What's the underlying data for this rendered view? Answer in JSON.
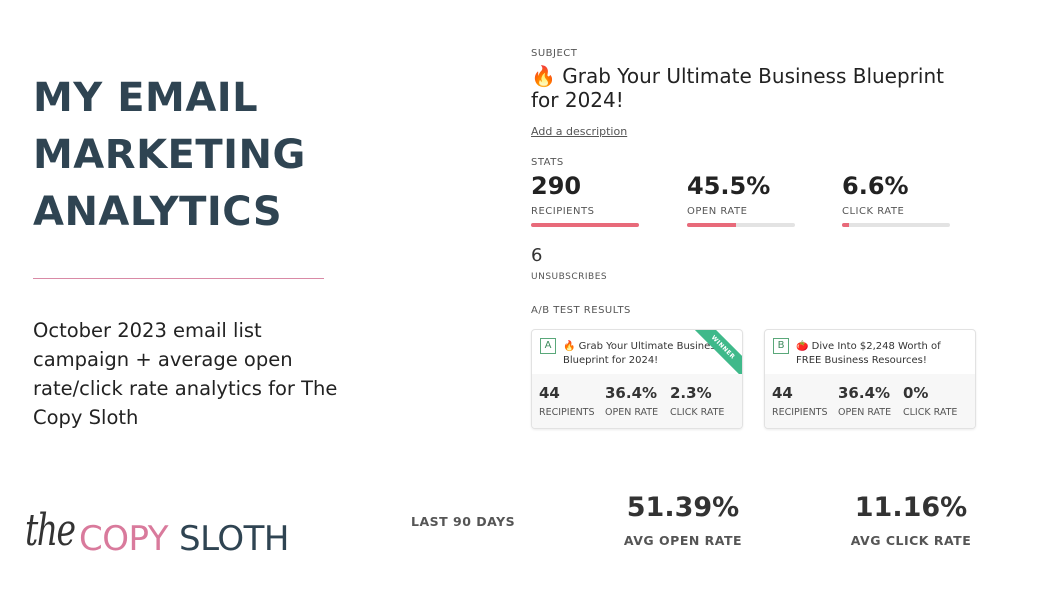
{
  "title": {
    "line1": "MY EMAIL",
    "line2": "MARKETING",
    "line3": "ANALYTICS"
  },
  "description": "October 2023 email list campaign + average open rate/click rate analytics for The Copy Sloth",
  "logo": {
    "script": "the",
    "word1": "COPY",
    "word2": "SLOTH"
  },
  "email": {
    "subject_label": "SUBJECT",
    "subject": "🔥 Grab Your Ultimate Business Blueprint for 2024!",
    "add_description": "Add a description",
    "stats_label": "STATS",
    "stats": [
      {
        "value": "290",
        "label": "RECIPIENTS",
        "progress": 1.0
      },
      {
        "value": "45.5%",
        "label": "OPEN RATE",
        "progress": 0.455
      },
      {
        "value": "6.6%",
        "label": "CLICK RATE",
        "progress": 0.066
      }
    ],
    "unsubscribes": {
      "value": "6",
      "label": "UNSUBSCRIBES"
    },
    "ab_label": "A/B TEST RESULTS",
    "ab_tests": [
      {
        "letter": "A",
        "subject": "🔥 Grab Your Ultimate Business Blueprint for 2024!",
        "ribbon": "WINNER",
        "recipients": "44",
        "recipients_label": "RECIPIENTS",
        "open_rate": "36.4%",
        "open_rate_label": "OPEN RATE",
        "click_rate": "2.3%",
        "click_rate_label": "CLICK RATE"
      },
      {
        "letter": "B",
        "subject": "🍅 Dive Into $2,248 Worth of FREE Business Resources!",
        "recipients": "44",
        "recipients_label": "RECIPIENTS",
        "open_rate": "36.4%",
        "open_rate_label": "OPEN RATE",
        "click_rate": "0%",
        "click_rate_label": "CLICK RATE"
      }
    ]
  },
  "summary": {
    "period": "LAST 90 DAYS",
    "avg_open_rate": "51.39%",
    "avg_open_rate_label": "AVG OPEN RATE",
    "avg_click_rate": "11.16%",
    "avg_click_rate_label": "AVG CLICK RATE"
  },
  "colors": {
    "title": "#2f4452",
    "accent_pink": "#d97a9c",
    "bar_fill": "#e86a7a",
    "winner": "#3fb98a"
  }
}
